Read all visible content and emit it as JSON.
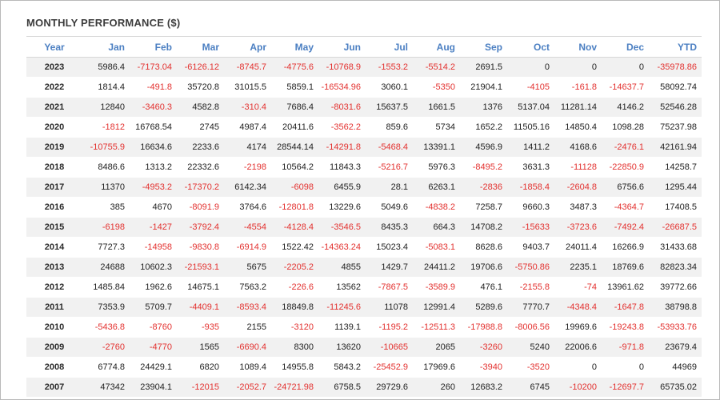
{
  "title": "MONTHLY PERFORMANCE ($)",
  "columns": [
    "Year",
    "Jan",
    "Feb",
    "Mar",
    "Apr",
    "May",
    "Jun",
    "Jul",
    "Aug",
    "Sep",
    "Oct",
    "Nov",
    "Dec",
    "YTD"
  ],
  "colors": {
    "header": "#4b7fc2",
    "negative": "#e3312f",
    "stripe": "#f1f1f1"
  },
  "rows": [
    [
      "2023",
      "5986.4",
      "-7173.04",
      "-6126.12",
      "-8745.7",
      "-4775.6",
      "-10768.9",
      "-1553.2",
      "-5514.2",
      "2691.5",
      "0",
      "0",
      "0",
      "-35978.86"
    ],
    [
      "2022",
      "1814.4",
      "-491.8",
      "35720.8",
      "31015.5",
      "5859.1",
      "-16534.96",
      "3060.1",
      "-5350",
      "21904.1",
      "-4105",
      "-161.8",
      "-14637.7",
      "58092.74"
    ],
    [
      "2021",
      "12840",
      "-3460.3",
      "4582.8",
      "-310.4",
      "7686.4",
      "-8031.6",
      "15637.5",
      "1661.5",
      "1376",
      "5137.04",
      "11281.14",
      "4146.2",
      "52546.28"
    ],
    [
      "2020",
      "-1812",
      "16768.54",
      "2745",
      "4987.4",
      "20411.6",
      "-3562.2",
      "859.6",
      "5734",
      "1652.2",
      "11505.16",
      "14850.4",
      "1098.28",
      "75237.98"
    ],
    [
      "2019",
      "-10755.9",
      "16634.6",
      "2233.6",
      "4174",
      "28544.14",
      "-14291.8",
      "-5468.4",
      "13391.1",
      "4596.9",
      "1411.2",
      "4168.6",
      "-2476.1",
      "42161.94"
    ],
    [
      "2018",
      "8486.6",
      "1313.2",
      "22332.6",
      "-2198",
      "10564.2",
      "11843.3",
      "-5216.7",
      "5976.3",
      "-8495.2",
      "3631.3",
      "-11128",
      "-22850.9",
      "14258.7"
    ],
    [
      "2017",
      "11370",
      "-4953.2",
      "-17370.2",
      "6142.34",
      "-6098",
      "6455.9",
      "28.1",
      "6263.1",
      "-2836",
      "-1858.4",
      "-2604.8",
      "6756.6",
      "1295.44"
    ],
    [
      "2016",
      "385",
      "4670",
      "-8091.9",
      "3764.6",
      "-12801.8",
      "13229.6",
      "5049.6",
      "-4838.2",
      "7258.7",
      "9660.3",
      "3487.3",
      "-4364.7",
      "17408.5"
    ],
    [
      "2015",
      "-6198",
      "-1427",
      "-3792.4",
      "-4554",
      "-4128.4",
      "-3546.5",
      "8435.3",
      "664.3",
      "14708.2",
      "-15633",
      "-3723.6",
      "-7492.4",
      "-26687.5"
    ],
    [
      "2014",
      "7727.3",
      "-14958",
      "-9830.8",
      "-6914.9",
      "1522.42",
      "-14363.24",
      "15023.4",
      "-5083.1",
      "8628.6",
      "9403.7",
      "24011.4",
      "16266.9",
      "31433.68"
    ],
    [
      "2013",
      "24688",
      "10602.3",
      "-21593.1",
      "5675",
      "-2205.2",
      "4855",
      "1429.7",
      "24411.2",
      "19706.6",
      "-5750.86",
      "2235.1",
      "18769.6",
      "82823.34"
    ],
    [
      "2012",
      "1485.84",
      "1962.6",
      "14675.1",
      "7563.2",
      "-226.6",
      "13562",
      "-7867.5",
      "-3589.9",
      "476.1",
      "-2155.8",
      "-74",
      "13961.62",
      "39772.66"
    ],
    [
      "2011",
      "7353.9",
      "5709.7",
      "-4409.1",
      "-8593.4",
      "18849.8",
      "-11245.6",
      "11078",
      "12991.4",
      "5289.6",
      "7770.7",
      "-4348.4",
      "-1647.8",
      "38798.8"
    ],
    [
      "2010",
      "-5436.8",
      "-8760",
      "-935",
      "2155",
      "-3120",
      "1139.1",
      "-1195.2",
      "-12511.3",
      "-17988.8",
      "-8006.56",
      "19969.6",
      "-19243.8",
      "-53933.76"
    ],
    [
      "2009",
      "-2760",
      "-4770",
      "1565",
      "-6690.4",
      "8300",
      "13620",
      "-10665",
      "2065",
      "-3260",
      "5240",
      "22006.6",
      "-971.8",
      "23679.4"
    ],
    [
      "2008",
      "6774.8",
      "24429.1",
      "6820",
      "1089.4",
      "14955.8",
      "5843.2",
      "-25452.9",
      "17969.6",
      "-3940",
      "-3520",
      "0",
      "0",
      "44969"
    ],
    [
      "2007",
      "47342",
      "23904.1",
      "-12015",
      "-2052.7",
      "-24721.98",
      "6758.5",
      "29729.6",
      "260",
      "12683.2",
      "6745",
      "-10200",
      "-12697.7",
      "65735.02"
    ]
  ]
}
